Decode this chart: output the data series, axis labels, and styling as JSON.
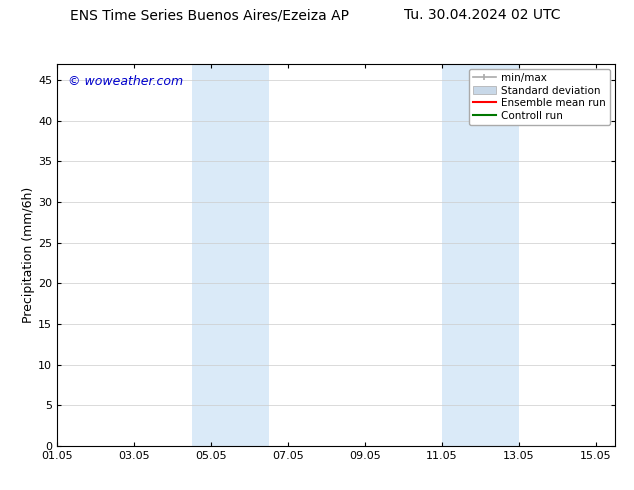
{
  "title_left": "ENS Time Series Buenos Aires/Ezeiza AP",
  "title_right": "Tu. 30.04.2024 02 UTC",
  "ylabel": "Precipitation (mm/6h)",
  "watermark": "© woweather.com",
  "watermark_color": "#0000cc",
  "background_color": "#ffffff",
  "plot_bg_color": "#ffffff",
  "shaded_band_color": "#daeaf8",
  "ylim": [
    0,
    47
  ],
  "yticks": [
    0,
    5,
    10,
    15,
    20,
    25,
    30,
    35,
    40,
    45
  ],
  "xlim": [
    0,
    14.5
  ],
  "xtick_labels": [
    "01.05",
    "03.05",
    "05.05",
    "07.05",
    "09.05",
    "11.05",
    "13.05",
    "15.05"
  ],
  "xtick_positions": [
    0,
    2,
    4,
    6,
    8,
    10,
    12,
    14
  ],
  "shaded_regions": [
    {
      "start": 3.5,
      "end": 5.5
    },
    {
      "start": 10.0,
      "end": 12.0
    }
  ],
  "legend_entries": [
    {
      "label": "min/max",
      "color": "#aaaaaa",
      "type": "minmax"
    },
    {
      "label": "Standard deviation",
      "color": "#c8d8e8",
      "type": "stddev"
    },
    {
      "label": "Ensemble mean run",
      "color": "#ff0000",
      "type": "line"
    },
    {
      "label": "Controll run",
      "color": "#007700",
      "type": "line"
    }
  ],
  "font_size_title": 10,
  "font_size_axis": 9,
  "font_size_tick": 8,
  "font_size_legend": 7.5,
  "font_size_watermark": 9
}
